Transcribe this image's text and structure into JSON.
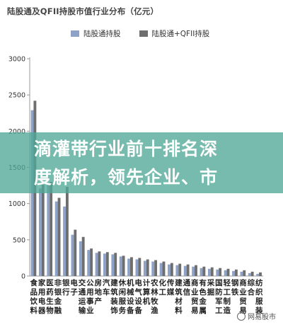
{
  "chart_data": {
    "type": "bar",
    "title": "陆股通及QFII持股市值行业分布（亿元）",
    "xlabel": "",
    "ylabel": "",
    "ylim": [
      0,
      3000
    ],
    "yticks": [
      0,
      500,
      1000,
      1500,
      2000,
      2500,
      3000
    ],
    "grid": false,
    "legend_position": "top",
    "categories": [
      "食品饮料",
      "家用电器",
      "医药生物",
      "非银金融",
      "银行",
      "电子",
      "交通运输",
      "公用事业",
      "房地产",
      "汽车",
      "建筑装饰",
      "休闲服务",
      "机械设备",
      "电气设备",
      "计算机",
      "农林牧渔",
      "化工",
      "传媒",
      "建筑材料",
      "通信",
      "商业贸易",
      "有色金属",
      "采掘",
      "国防军工",
      "轻工制造",
      "钢铁",
      "商业贸易",
      "综合",
      "纺织服装"
    ],
    "category_display": [
      "食饮",
      "家电",
      "医药生物",
      "非银金融",
      "银行",
      "电子",
      "交运",
      "公用",
      "房地产",
      "汽车",
      "建筑",
      "休闲",
      "机械",
      "电气",
      "计算机",
      "农牧渔",
      "化工",
      "传媒",
      "建装",
      "通信",
      "商贸",
      "有色",
      "采掘",
      "国防",
      "轻工",
      "钢铁",
      "商贸",
      "综合",
      "纺织"
    ],
    "category_lines": [
      [
        "食",
        "品",
        "饮",
        "料"
      ],
      [
        "家",
        "用",
        "电",
        "器"
      ],
      [
        "医",
        "药",
        "生",
        "物"
      ],
      [
        "非",
        "银",
        "金",
        "融"
      ],
      [
        "银",
        "行",
        "",
        ""
      ],
      [
        "电",
        "子",
        "",
        ""
      ],
      [
        "交",
        "通",
        "运",
        "输"
      ],
      [
        "公",
        "用",
        "事",
        "业"
      ],
      [
        "房",
        "地",
        "产",
        ""
      ],
      [
        "汽",
        "车",
        "",
        ""
      ],
      [
        "建",
        "筑",
        "装",
        "饰"
      ],
      [
        "休",
        "闲",
        "服",
        "务"
      ],
      [
        "机",
        "械",
        "设",
        "备"
      ],
      [
        "电",
        "气",
        "设",
        "备"
      ],
      [
        "计",
        "算",
        "机",
        ""
      ],
      [
        "农",
        "林",
        "牧",
        "渔"
      ],
      [
        "化",
        "工",
        "",
        ""
      ],
      [
        "传",
        "媒",
        "",
        ""
      ],
      [
        "建",
        "筑",
        "材",
        "料"
      ],
      [
        "通",
        "信",
        "",
        ""
      ],
      [
        "商",
        "业",
        "贸",
        "易"
      ],
      [
        "有",
        "色",
        "金",
        "属"
      ],
      [
        "采",
        "掘",
        "",
        ""
      ],
      [
        "国",
        "防",
        "军",
        "工"
      ],
      [
        "轻",
        "工",
        "制",
        "造"
      ],
      [
        "钢",
        "铁",
        "",
        ""
      ],
      [
        "商",
        "业",
        "贸",
        "易"
      ],
      [
        "综",
        "合",
        "",
        ""
      ],
      [
        "纺",
        "织",
        "服",
        "装"
      ]
    ],
    "series": [
      {
        "name": "陆股通持股",
        "color": "#8da2c6",
        "values": [
          2290,
          1210,
          1250,
          1030,
          960,
          570,
          480,
          360,
          320,
          310,
          300,
          270,
          240,
          230,
          210,
          200,
          180,
          160,
          150,
          140,
          130,
          110,
          100,
          90,
          80,
          70,
          60,
          40,
          30
        ]
      },
      {
        "name": "陆股通+QFII持股",
        "color": "#6e6e6e",
        "values": [
          2420,
          1260,
          1300,
          1080,
          1230,
          640,
          540,
          380,
          340,
          330,
          320,
          280,
          260,
          250,
          230,
          220,
          200,
          180,
          170,
          160,
          150,
          130,
          120,
          110,
          100,
          90,
          80,
          60,
          50
        ]
      }
    ]
  },
  "overlay": {
    "line1": "滴灌带行业前十排名深",
    "line2": "度解析，领先企业、市"
  },
  "watermark": {
    "text": "网易股市"
  }
}
